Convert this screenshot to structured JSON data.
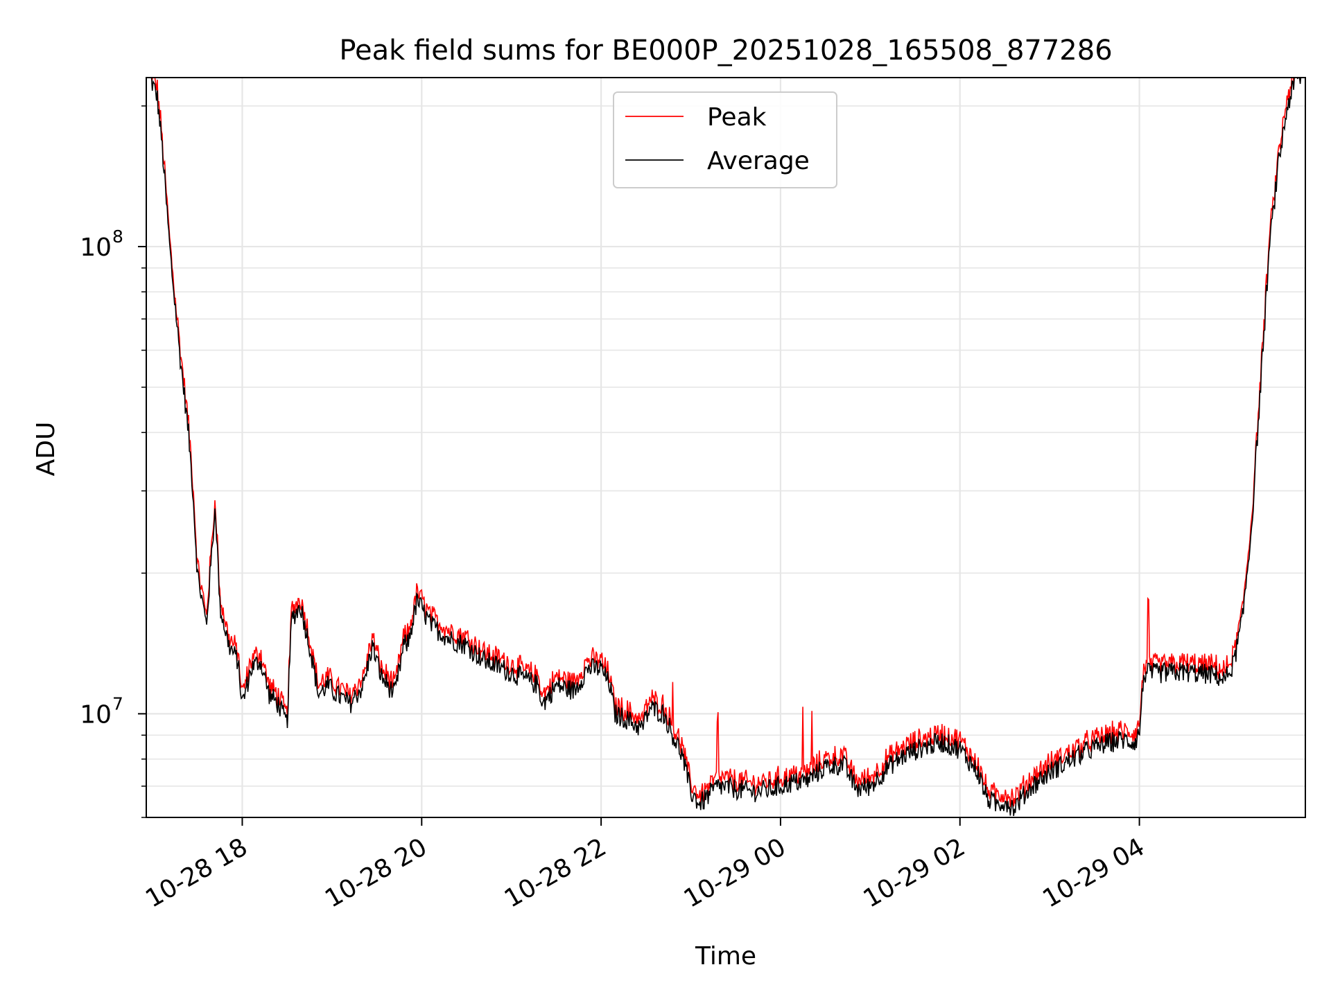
{
  "chart_data": {
    "type": "line",
    "title": "Peak field sums for BE000P_20251028_165508_877286",
    "xlabel": "Time",
    "ylabel": "ADU",
    "yscale": "log",
    "ylim": [
      6000000,
      230000000
    ],
    "xlim_hours": [
      16.93,
      29.85
    ],
    "grid": true,
    "legend_position": "upper center",
    "y_major_ticks": [
      {
        "value": 10000000,
        "base": "10",
        "exp": "7"
      },
      {
        "value": 100000000,
        "base": "10",
        "exp": "8"
      }
    ],
    "x_ticks": [
      {
        "hour": 18,
        "label": "10-28 18"
      },
      {
        "hour": 20,
        "label": "10-28 20"
      },
      {
        "hour": 22,
        "label": "10-28 22"
      },
      {
        "hour": 24,
        "label": "10-29 00"
      },
      {
        "hour": 26,
        "label": "10-29 02"
      },
      {
        "hour": 28,
        "label": "10-29 04"
      }
    ],
    "series": [
      {
        "name": "Peak",
        "color": "#ff0000",
        "peak_offset_pct": 3,
        "spikes_hours": [
          22.8,
          23.3,
          24.25,
          24.35,
          28.1
        ]
      },
      {
        "name": "Average",
        "color": "#000000",
        "hours": [
          16.97,
          17.05,
          17.1,
          17.2,
          17.3,
          17.4,
          17.45,
          17.5,
          17.6,
          17.7,
          17.75,
          17.85,
          17.95,
          18.0,
          18.1,
          18.2,
          18.3,
          18.4,
          18.5,
          18.55,
          18.65,
          18.75,
          18.85,
          18.95,
          19.05,
          19.2,
          19.35,
          19.45,
          19.55,
          19.7,
          19.8,
          19.85,
          19.95,
          20.1,
          20.3,
          20.5,
          20.7,
          20.9,
          21.1,
          21.3,
          21.35,
          21.5,
          21.7,
          21.85,
          22.0,
          22.1,
          22.15,
          22.3,
          22.45,
          22.55,
          22.7,
          22.8,
          22.9,
          23.0,
          23.1,
          23.3,
          23.5,
          23.7,
          23.9,
          24.1,
          24.3,
          24.5,
          24.7,
          24.85,
          25.0,
          25.2,
          25.4,
          25.6,
          25.8,
          26.0,
          26.2,
          26.3,
          26.4,
          26.5,
          26.6,
          26.8,
          27.0,
          27.2,
          27.4,
          27.6,
          27.8,
          27.95,
          28.0,
          28.05,
          28.2,
          28.5,
          28.85,
          28.95,
          29.05,
          29.15,
          29.25,
          29.35,
          29.45,
          29.55,
          29.65,
          29.75,
          29.82
        ],
        "values": [
          230000000,
          210000000,
          170000000,
          95000000,
          60000000,
          40000000,
          30000000,
          20000000,
          15500000,
          28000000,
          17000000,
          14000000,
          13000000,
          10500000,
          12500000,
          13000000,
          11000000,
          10500000,
          9500000,
          16000000,
          17000000,
          14000000,
          11000000,
          11500000,
          11000000,
          10500000,
          11500000,
          14000000,
          12000000,
          11000000,
          14000000,
          14200000,
          17500000,
          15500000,
          14500000,
          14000000,
          13000000,
          12500000,
          12000000,
          11500000,
          10500000,
          11500000,
          11200000,
          12500000,
          12500000,
          11500000,
          10000000,
          9700000,
          9300000,
          10300000,
          10000000,
          9000000,
          8200000,
          6800000,
          6400000,
          7000000,
          6900000,
          6800000,
          6900000,
          7100000,
          7200000,
          7700000,
          7800000,
          6900000,
          7000000,
          7700000,
          8200000,
          8500000,
          8700000,
          8400000,
          7500000,
          6600000,
          6400000,
          6500000,
          6300000,
          7000000,
          7500000,
          7900000,
          8300000,
          8600000,
          8800000,
          8700000,
          9100000,
          12200000,
          12200000,
          12300000,
          12100000,
          11800000,
          12800000,
          16000000,
          25000000,
          50000000,
          100000000,
          150000000,
          200000000,
          230000000,
          230000000
        ]
      }
    ]
  }
}
